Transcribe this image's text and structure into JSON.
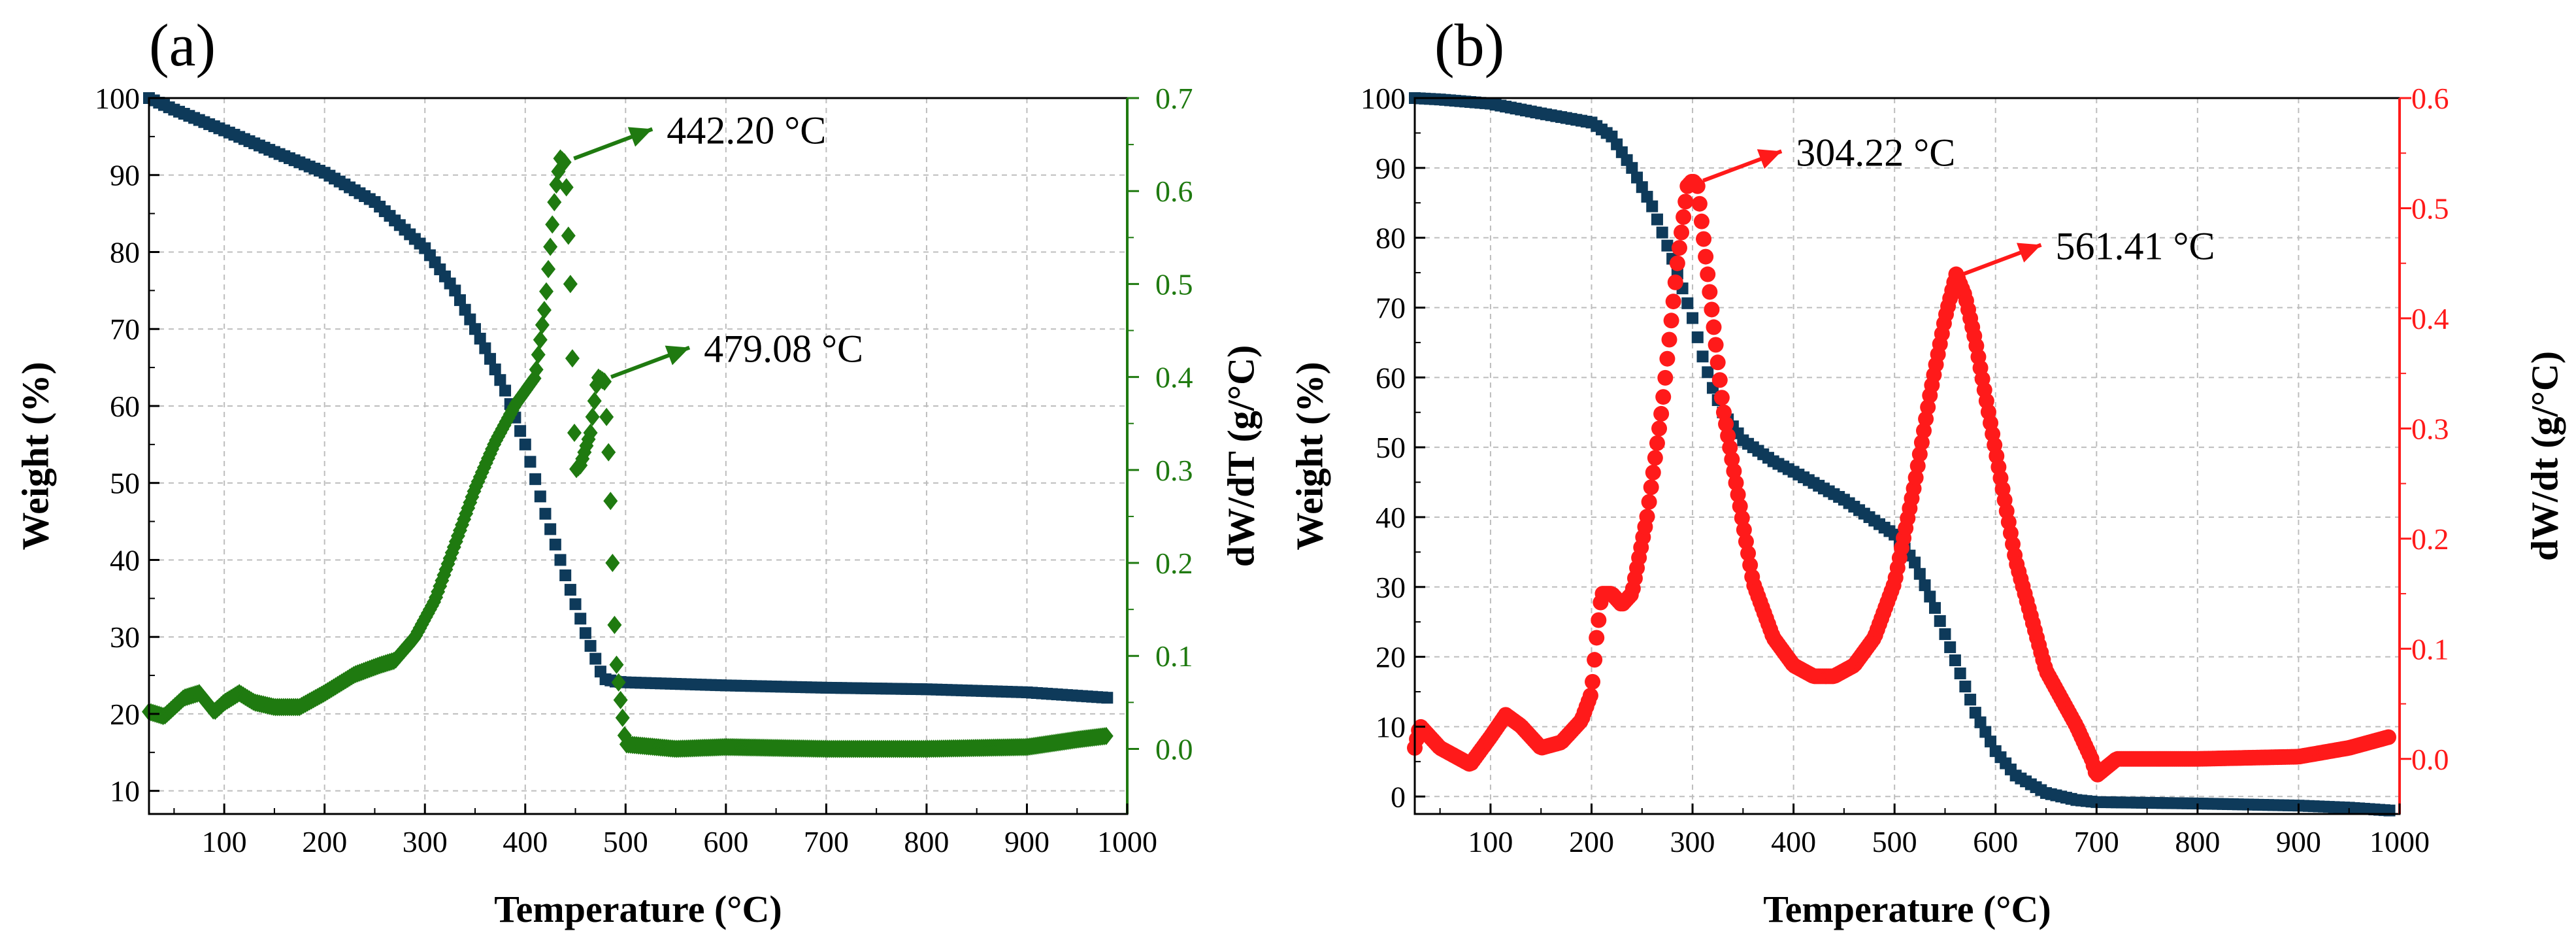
{
  "chart_data": [
    {
      "panel": "(a)",
      "type": "line",
      "xlabel": "Temperature (°C)",
      "ylabel": "Weight (%)",
      "y2label": "dW/dT (g/°C)",
      "xlim": [
        25,
        1000
      ],
      "ylim": [
        7,
        100
      ],
      "y2lim": [
        -0.07,
        0.7
      ],
      "xticks": [
        100,
        200,
        300,
        400,
        500,
        600,
        700,
        800,
        900,
        1000
      ],
      "yticks": [
        10,
        20,
        30,
        40,
        50,
        60,
        70,
        80,
        90,
        100
      ],
      "y2ticks": [
        0.0,
        0.1,
        0.2,
        0.3,
        0.4,
        0.5,
        0.6,
        0.7
      ],
      "grid": true,
      "colors": {
        "weight": "#0e3a5a",
        "derivative": "#1f7a10",
        "right_axis": "#1f7a10"
      },
      "series": [
        {
          "name": "Weight",
          "axis": "left",
          "marker": "square",
          "x": [
            25,
            50,
            100,
            150,
            200,
            250,
            300,
            330,
            360,
            380,
            400,
            420,
            440,
            460,
            475,
            480,
            490,
            500,
            600,
            700,
            800,
            900,
            980
          ],
          "values": [
            100,
            98.5,
            95.8,
            93.0,
            90.3,
            86.5,
            80.5,
            75.0,
            67.5,
            62.0,
            55.0,
            46.0,
            38.0,
            30.5,
            25.5,
            24.5,
            24.2,
            24.1,
            23.7,
            23.4,
            23.2,
            22.8,
            22.1
          ]
        },
        {
          "name": "dW/dT",
          "axis": "right",
          "marker": "diamond",
          "x": [
            25,
            40,
            60,
            75,
            90,
            100,
            115,
            130,
            150,
            175,
            200,
            230,
            255,
            270,
            290,
            310,
            330,
            350,
            370,
            390,
            410,
            420,
            430,
            435,
            440,
            445,
            450,
            455,
            465,
            472,
            479,
            484,
            490,
            500,
            550,
            600,
            700,
            800,
            900,
            950,
            980
          ],
          "values": [
            0.04,
            0.035,
            0.055,
            0.06,
            0.04,
            0.05,
            0.06,
            0.05,
            0.045,
            0.045,
            0.06,
            0.08,
            0.09,
            0.095,
            0.12,
            0.16,
            0.22,
            0.28,
            0.33,
            0.37,
            0.4,
            0.48,
            0.6,
            0.635,
            0.63,
            0.5,
            0.3,
            0.305,
            0.34,
            0.4,
            0.395,
            0.3,
            0.1,
            0.005,
            0.0,
            0.002,
            0.0,
            0.0,
            0.002,
            0.01,
            0.014
          ]
        }
      ],
      "annotations": [
        {
          "text": "442.20 °C",
          "x": 442,
          "y": 0.635,
          "axis": "right"
        },
        {
          "text": "479.08 °C",
          "x": 479,
          "y": 0.4,
          "axis": "right"
        }
      ]
    },
    {
      "panel": "(b)",
      "type": "line",
      "xlabel": "Temperature (°C)",
      "ylabel": "Weight (%)",
      "y2label": "dW/dt (g/°C)",
      "xlim": [
        25,
        1000
      ],
      "ylim": [
        -2.5,
        100
      ],
      "y2lim": [
        -0.05,
        0.6
      ],
      "xticks": [
        100,
        200,
        300,
        400,
        500,
        600,
        700,
        800,
        900,
        1000
      ],
      "yticks": [
        0,
        10,
        20,
        30,
        40,
        50,
        60,
        70,
        80,
        90,
        100
      ],
      "y2ticks": [
        0.0,
        0.1,
        0.2,
        0.3,
        0.4,
        0.5,
        0.6
      ],
      "grid": true,
      "colors": {
        "weight": "#0e3a5a",
        "derivative": "#ff1a1a",
        "right_axis": "#ff1a1a"
      },
      "series": [
        {
          "name": "Weight",
          "axis": "left",
          "marker": "square",
          "x": [
            25,
            50,
            100,
            150,
            200,
            220,
            240,
            260,
            280,
            300,
            310,
            320,
            330,
            350,
            380,
            400,
            450,
            500,
            520,
            540,
            560,
            580,
            600,
            620,
            650,
            680,
            700,
            800,
            900,
            950,
            990
          ],
          "values": [
            100,
            99.8,
            99.2,
            97.8,
            96.5,
            94.5,
            90.0,
            84.5,
            77.0,
            68.5,
            63.0,
            58.5,
            55.0,
            51.0,
            48.0,
            46.5,
            42.5,
            37.5,
            33.5,
            27.0,
            19.5,
            12.0,
            6.5,
            3.0,
            0.5,
            -0.5,
            -0.8,
            -1.0,
            -1.3,
            -1.6,
            -2.0
          ]
        },
        {
          "name": "dW/dt",
          "axis": "right",
          "marker": "circle",
          "x": [
            25,
            30,
            50,
            80,
            100,
            115,
            130,
            150,
            170,
            190,
            200,
            205,
            210,
            220,
            230,
            240,
            255,
            270,
            285,
            295,
            300,
            305,
            310,
            320,
            330,
            345,
            360,
            380,
            400,
            420,
            440,
            460,
            480,
            500,
            520,
            535,
            550,
            561,
            570,
            580,
            600,
            620,
            650,
            680,
            695,
            700,
            720,
            800,
            900,
            950,
            990
          ],
          "values": [
            0.01,
            0.03,
            0.01,
            -0.005,
            0.02,
            0.04,
            0.03,
            0.01,
            0.015,
            0.035,
            0.06,
            0.11,
            0.15,
            0.15,
            0.14,
            0.15,
            0.22,
            0.32,
            0.45,
            0.52,
            0.525,
            0.52,
            0.48,
            0.4,
            0.32,
            0.24,
            0.16,
            0.11,
            0.085,
            0.075,
            0.075,
            0.085,
            0.11,
            0.16,
            0.25,
            0.33,
            0.4,
            0.44,
            0.42,
            0.38,
            0.28,
            0.18,
            0.08,
            0.03,
            0.0,
            -0.015,
            0.0,
            0.0,
            0.002,
            0.01,
            0.02
          ]
        }
      ],
      "annotations": [
        {
          "text": "304.22 °C",
          "x": 304,
          "y": 0.525,
          "axis": "right"
        },
        {
          "text": "561.41 °C",
          "x": 561,
          "y": 0.44,
          "axis": "right"
        }
      ]
    }
  ]
}
